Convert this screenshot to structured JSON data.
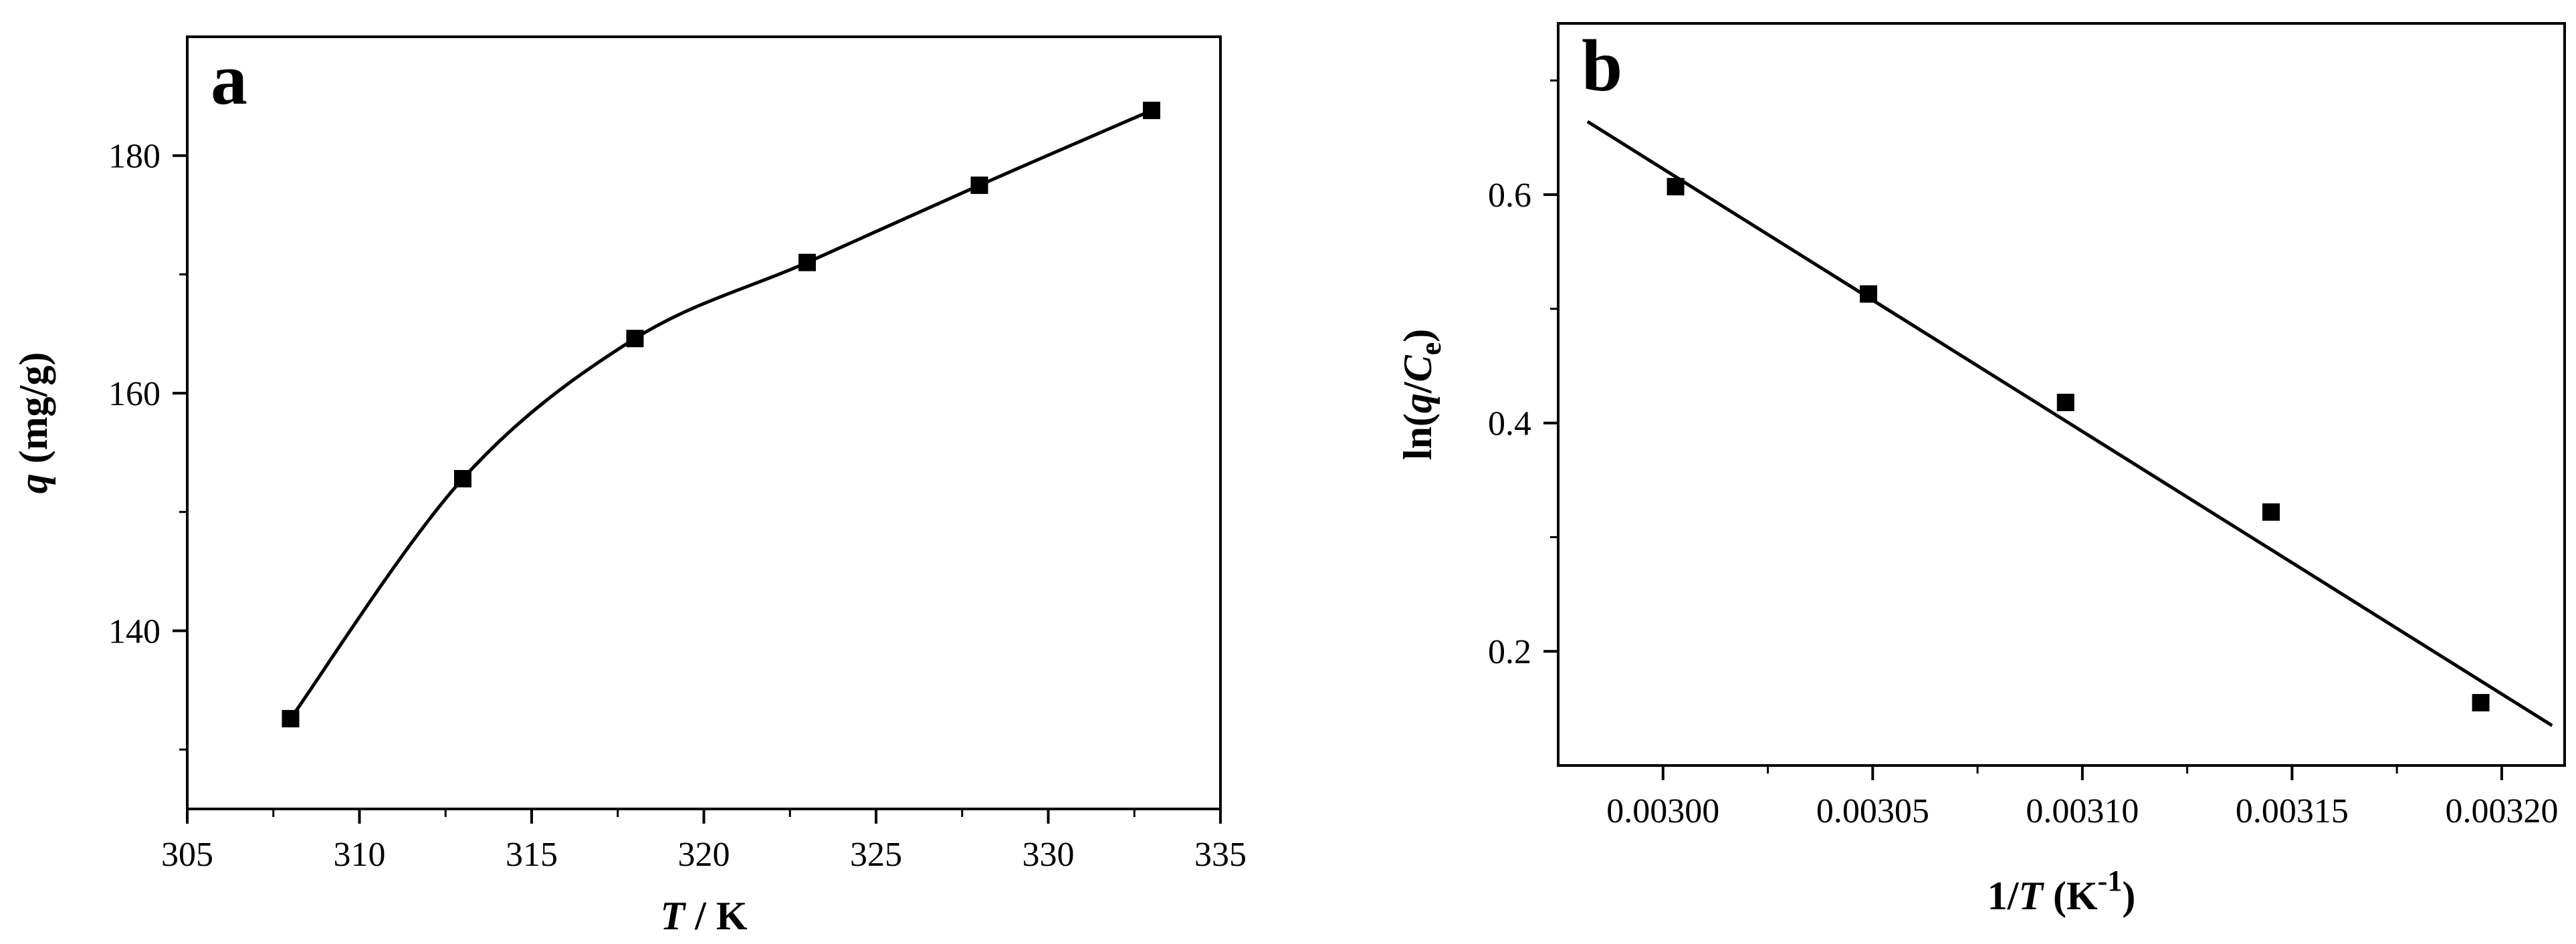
{
  "chart_data": [
    {
      "panel_label": "a",
      "type": "scatter",
      "xlabel": {
        "var": "T",
        "rest": " / K"
      },
      "ylabel": {
        "var": "q",
        "rest": " (mg/g)"
      },
      "xlim": [
        305,
        335
      ],
      "ylim": [
        125,
        190
      ],
      "x_ticks": [
        305,
        310,
        315,
        320,
        325,
        330,
        335
      ],
      "x_tick_labels": [
        "305",
        "310",
        "315",
        "320",
        "325",
        "330",
        "335"
      ],
      "y_ticks": [
        140,
        160,
        180
      ],
      "y_tick_labels": [
        "140",
        "160",
        "180"
      ],
      "series": [
        {
          "marker": "square",
          "x": [
            308,
            313,
            318,
            323,
            328,
            333
          ],
          "y": [
            132.6,
            152.8,
            164.6,
            171.0,
            177.5,
            183.8
          ]
        }
      ],
      "fit_line": {
        "type": "smooth",
        "through_points": true
      },
      "grid": false,
      "color": "#000000"
    },
    {
      "panel_label": "b",
      "type": "scatter",
      "xlabel": {
        "text": "1/",
        "var": "T",
        "unit": "  (K",
        "sup": "-1",
        "close": ")"
      },
      "ylabel": {
        "pre": "ln(",
        "var": "q",
        "mid": "/",
        "var2": "C",
        "sub": "e",
        "close": ")"
      },
      "xlim": [
        0.002975,
        0.003215
      ],
      "ylim": [
        0.1,
        0.75
      ],
      "x_ticks": [
        0.003,
        0.00305,
        0.0031,
        0.00315,
        0.0032
      ],
      "x_tick_labels": [
        "0.00300",
        "0.00305",
        "0.00310",
        "0.00315",
        "0.00320"
      ],
      "y_ticks": [
        0.2,
        0.4,
        0.6
      ],
      "y_tick_labels": [
        "0.2",
        "0.4",
        "0.6"
      ],
      "series": [
        {
          "marker": "square",
          "x": [
            0.003003,
            0.003049,
            0.003096,
            0.003145,
            0.003195
          ],
          "y": [
            0.607,
            0.513,
            0.418,
            0.322,
            0.155
          ]
        }
      ],
      "fit_line": {
        "type": "linear",
        "x": [
          0.002982,
          0.003212
        ],
        "y": [
          0.664,
          0.135
        ]
      },
      "grid": false,
      "color": "#000000"
    }
  ]
}
